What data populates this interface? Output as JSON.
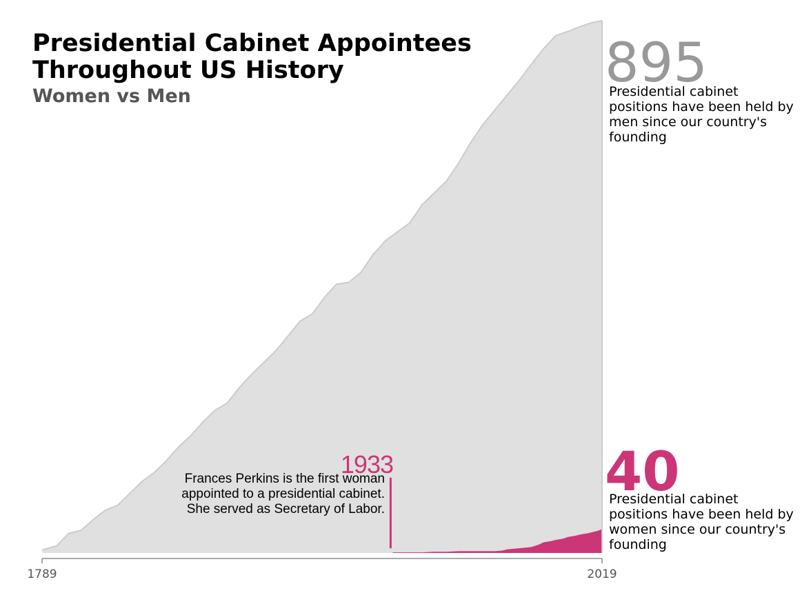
{
  "title": "Presidential Cabinet Appointees Throughout US History",
  "subtitle": "Women vs Men",
  "men_total": "895",
  "men_description": "Presidential cabinet positions have been held by men since our country's founding",
  "women_total": "40",
  "women_description": "Presidential cabinet positions have been held by women since our country's founding",
  "annotation": {
    "year": "1933",
    "text": "Frances Perkins is the first woman appointed to a presidential cabinet. She served as Secretary of Labor."
  },
  "colors": {
    "men_area": "#e0e0e0",
    "men_line": "#cccccc",
    "women_area": "#cc3677",
    "axis": "#555555",
    "big_men_number": "#999999"
  },
  "chart_data": {
    "type": "area",
    "x_ticks": [
      "1789",
      "2019"
    ],
    "xlim": [
      1789,
      2019
    ],
    "ylim": [
      0,
      895
    ],
    "grid": false,
    "series": [
      {
        "name": "Men",
        "x": [
          1789,
          1795,
          1800,
          1805,
          1810,
          1815,
          1820,
          1825,
          1830,
          1835,
          1840,
          1845,
          1850,
          1855,
          1860,
          1865,
          1870,
          1875,
          1880,
          1885,
          1890,
          1895,
          1900,
          1905,
          1910,
          1915,
          1920,
          1925,
          1930,
          1935,
          1940,
          1945,
          1950,
          1955,
          1960,
          1965,
          1970,
          1975,
          1980,
          1985,
          1990,
          1995,
          2000,
          2005,
          2010,
          2015,
          2019
        ],
        "values": [
          5,
          12,
          33,
          38,
          56,
          72,
          80,
          100,
          120,
          135,
          155,
          178,
          197,
          220,
          240,
          252,
          278,
          300,
          320,
          340,
          365,
          390,
          402,
          430,
          452,
          455,
          472,
          502,
          525,
          540,
          555,
          585,
          605,
          625,
          655,
          690,
          720,
          745,
          770,
          795,
          822,
          848,
          870,
          877,
          885,
          892,
          895
        ]
      },
      {
        "name": "Women",
        "x": [
          1933,
          1940,
          1945,
          1950,
          1955,
          1960,
          1965,
          1970,
          1975,
          1978,
          1980,
          1985,
          1990,
          1993,
          1995,
          1998,
          2000,
          2003,
          2005,
          2008,
          2010,
          2013,
          2015,
          2017,
          2019
        ],
        "values": [
          1,
          1,
          1,
          2,
          2,
          3,
          3,
          3,
          3,
          4,
          6,
          8,
          10,
          14,
          18,
          20,
          22,
          24,
          27,
          29,
          31,
          33,
          35,
          37,
          40
        ]
      }
    ]
  }
}
